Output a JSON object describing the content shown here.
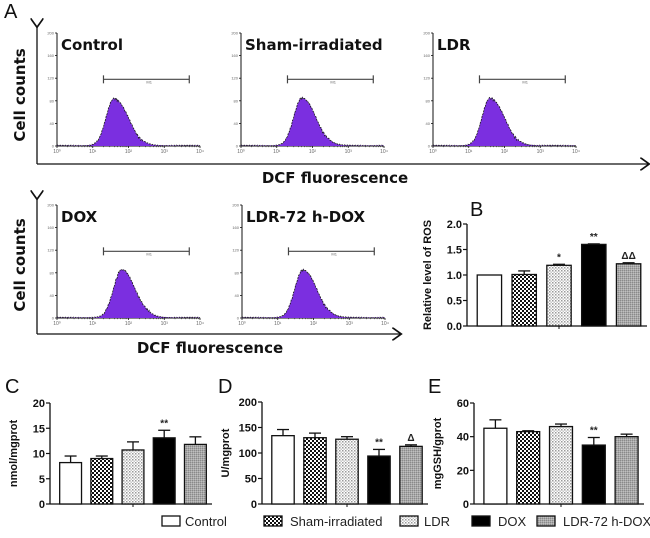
{
  "figure": {
    "panel_A_label": "A",
    "cell_counts_label": "Cell counts",
    "dcf_label": "DCF fluorescence",
    "marker_label": "M1"
  },
  "patterns": {
    "Control": "white",
    "Sham-irradiated": "checker",
    "LDR": "dots",
    "DOX": "black",
    "LDR-72 h-DOX": "grey-fine"
  },
  "colors": {
    "histogram_fill": "#7B2FE0",
    "histogram_edge": "#1a1a1a",
    "axis": "#111111",
    "marker": "#444444"
  },
  "chart_data": [
    {
      "type": "area",
      "panel": "A",
      "title": "Control",
      "xlabel": "DCF fluorescence",
      "ylabel": "Cell counts",
      "x_scale": "log",
      "x_ticks": [
        "10^0",
        "10^1",
        "10^2",
        "10^3",
        "10^4"
      ],
      "y_ticks": [
        "0",
        "40",
        "80",
        "120",
        "160",
        "200"
      ],
      "ylim": [
        0,
        200
      ],
      "peak_log10": 1.6,
      "peak_count": 84,
      "marker": {
        "label": "M1",
        "from_log10": 1.3,
        "to_log10": 3.7
      }
    },
    {
      "type": "area",
      "panel": "A",
      "title": "Sham-irradiated",
      "xlabel": "DCF fluorescence",
      "ylabel": "Cell counts",
      "x_scale": "log",
      "x_ticks": [
        "10^0",
        "10^1",
        "10^2",
        "10^3",
        "10^4"
      ],
      "y_ticks": [
        "0",
        "40",
        "80",
        "120",
        "160",
        "200"
      ],
      "ylim": [
        0,
        200
      ],
      "peak_log10": 1.7,
      "peak_count": 85,
      "marker": {
        "label": "M1",
        "from_log10": 1.3,
        "to_log10": 3.7
      }
    },
    {
      "type": "area",
      "panel": "A",
      "title": "LDR",
      "xlabel": "DCF fluorescence",
      "ylabel": "Cell counts",
      "x_scale": "log",
      "x_ticks": [
        "10^0",
        "10^1",
        "10^2",
        "10^3",
        "10^4"
      ],
      "y_ticks": [
        "0",
        "40",
        "80",
        "120",
        "160",
        "200"
      ],
      "ylim": [
        0,
        200
      ],
      "peak_log10": 1.6,
      "peak_count": 85,
      "marker": {
        "label": "M1",
        "from_log10": 1.3,
        "to_log10": 3.7
      }
    },
    {
      "type": "area",
      "panel": "A",
      "title": "DOX",
      "xlabel": "DCF fluorescence",
      "ylabel": "Cell counts",
      "x_scale": "log",
      "x_ticks": [
        "10^0",
        "10^1",
        "10^2",
        "10^3",
        "10^4"
      ],
      "y_ticks": [
        "0",
        "40",
        "80",
        "120",
        "160",
        "200"
      ],
      "ylim": [
        0,
        200
      ],
      "peak_log10": 1.8,
      "peak_count": 85,
      "marker": {
        "label": "M1",
        "from_log10": 1.3,
        "to_log10": 3.7
      }
    },
    {
      "type": "area",
      "panel": "A",
      "title": "LDR-72 h-DOX",
      "xlabel": "DCF fluorescence",
      "ylabel": "Cell counts",
      "x_scale": "log",
      "x_ticks": [
        "10^0",
        "10^1",
        "10^2",
        "10^3",
        "10^4"
      ],
      "y_ticks": [
        "0",
        "40",
        "80",
        "120",
        "160",
        "200"
      ],
      "ylim": [
        0,
        200
      ],
      "peak_log10": 1.7,
      "peak_count": 85,
      "marker": {
        "label": "M1",
        "from_log10": 1.3,
        "to_log10": 3.7
      }
    },
    {
      "type": "bar",
      "panel": "B",
      "title": "",
      "xlabel": "",
      "ylabel": "Relative level of ROS",
      "categories": [
        "Control",
        "Sham-irradiated",
        "LDR",
        "DOX",
        "LDR-72 h-DOX"
      ],
      "values": [
        1.0,
        1.01,
        1.19,
        1.6,
        1.22
      ],
      "errors": [
        0.0,
        0.07,
        0.02,
        0.01,
        0.02
      ],
      "significance": [
        "",
        "",
        "*",
        "**",
        "ΔΔ"
      ],
      "ylim": [
        0,
        2.0
      ],
      "y_ticks": [
        "0.0",
        "0.5",
        "1.0",
        "1.5",
        "2.0"
      ]
    },
    {
      "type": "bar",
      "panel": "C",
      "title": "",
      "xlabel": "",
      "ylabel": "nmol/mgprot",
      "categories": [
        "Control",
        "Sham-irradiated",
        "LDR",
        "DOX",
        "LDR-72 h-DOX"
      ],
      "values": [
        8.2,
        9.0,
        10.7,
        13.1,
        11.8
      ],
      "errors": [
        1.3,
        0.5,
        1.6,
        1.5,
        1.5
      ],
      "significance": [
        "",
        "",
        "",
        "**",
        ""
      ],
      "ylim": [
        0,
        20
      ],
      "y_ticks": [
        "0",
        "5",
        "10",
        "15",
        "20"
      ]
    },
    {
      "type": "bar",
      "panel": "D",
      "title": "",
      "xlabel": "",
      "ylabel": "U/mgprot",
      "categories": [
        "Control",
        "Sham-irradiated",
        "LDR",
        "DOX",
        "LDR-72 h-DOX"
      ],
      "values": [
        134,
        130,
        127,
        94,
        113
      ],
      "errors": [
        12,
        9,
        5,
        13,
        3
      ],
      "significance": [
        "",
        "",
        "",
        "**",
        "Δ"
      ],
      "ylim": [
        0,
        200
      ],
      "y_ticks": [
        "0",
        "50",
        "100",
        "150",
        "200"
      ]
    },
    {
      "type": "bar",
      "panel": "E",
      "title": "",
      "xlabel": "",
      "ylabel": "mgGSH/gprot",
      "categories": [
        "Control",
        "Sham-irradiated",
        "LDR",
        "DOX",
        "LDR-72 h-DOX"
      ],
      "values": [
        45,
        43,
        46,
        35,
        40
      ],
      "errors": [
        5,
        0.5,
        1.5,
        4.5,
        1.5
      ],
      "significance": [
        "",
        "",
        "",
        "**",
        ""
      ],
      "ylim": [
        0,
        60
      ],
      "y_ticks": [
        "0",
        "20",
        "40",
        "60"
      ]
    }
  ],
  "legend": {
    "placement": "bottom",
    "items": [
      "Control",
      "Sham-irradiated",
      "LDR",
      "DOX",
      "LDR-72 h-DOX"
    ]
  }
}
